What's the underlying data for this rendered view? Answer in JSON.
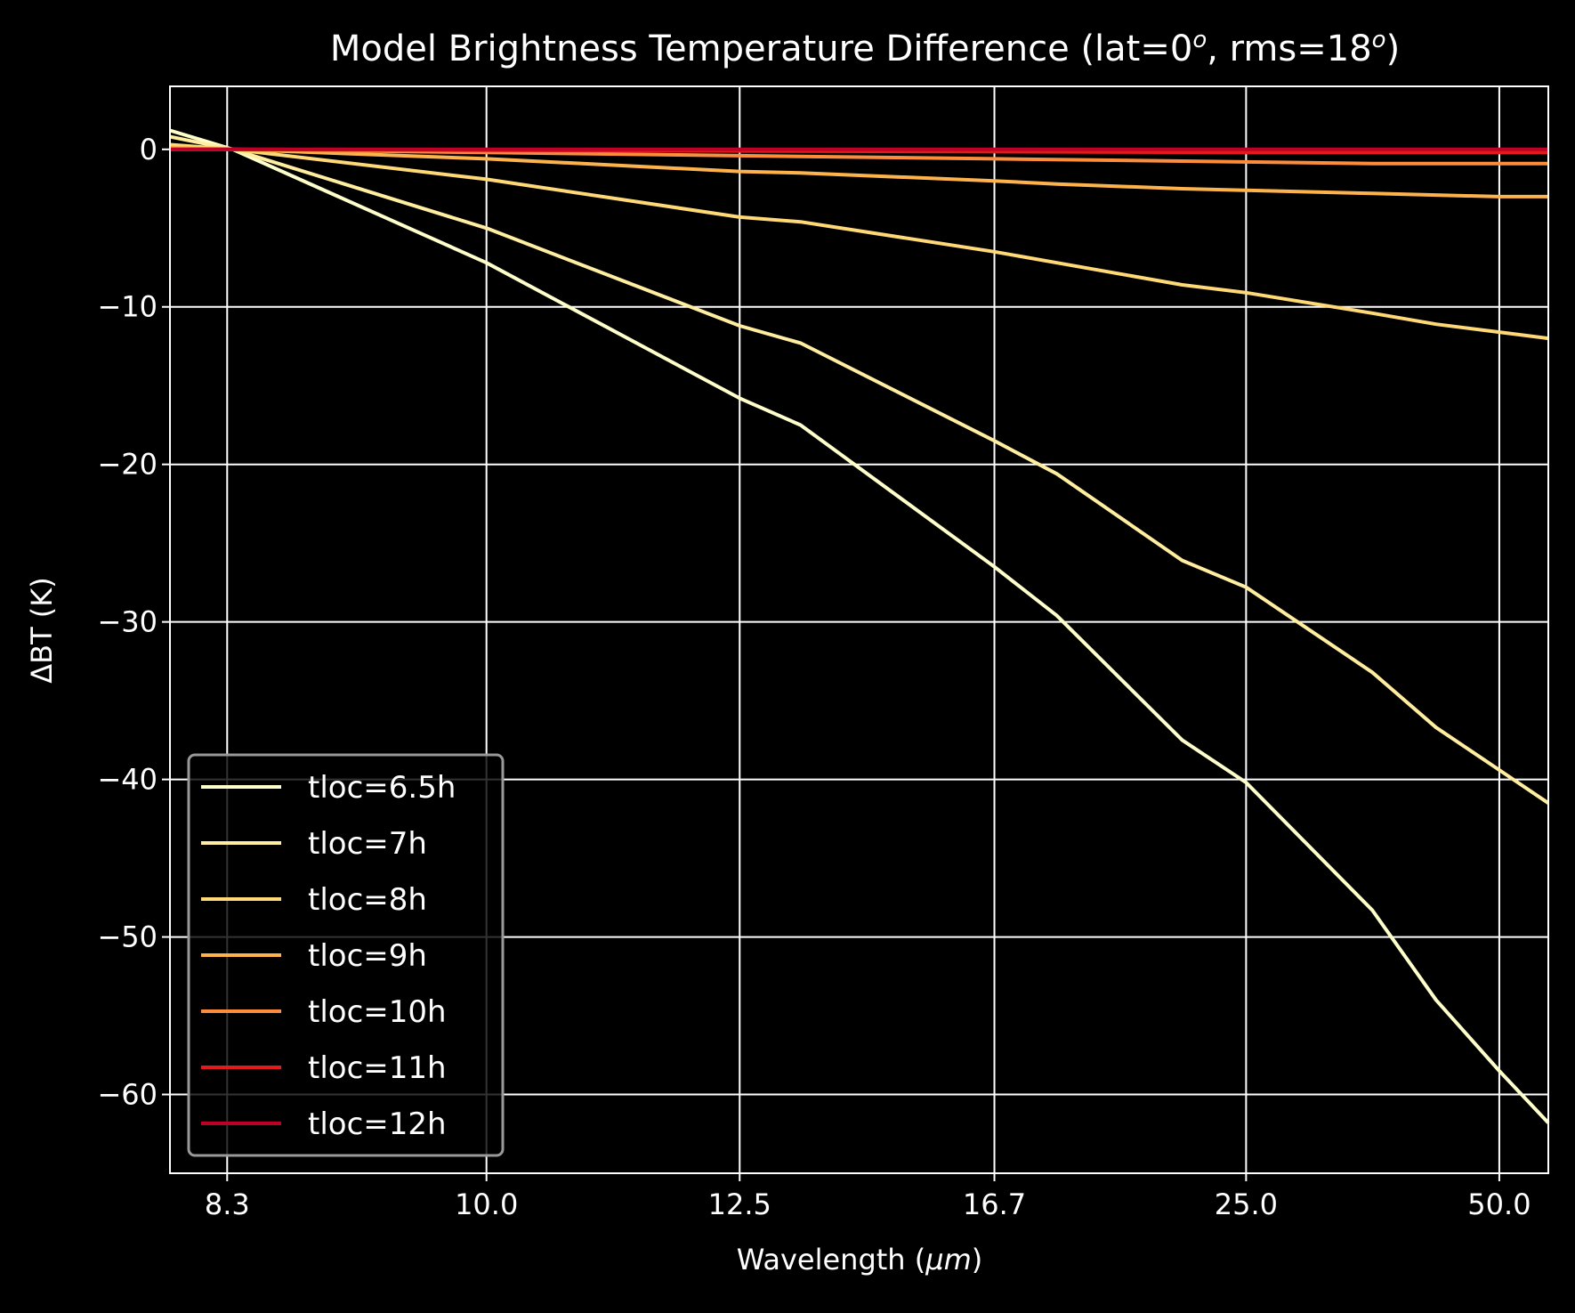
{
  "chart_data": {
    "type": "line",
    "title": "Model Brightness Temperature Difference (lat=0",
    "title_sup1": "o",
    "title_mid": ", rms=18",
    "title_sup2": "o",
    "title_end": ")",
    "xlabel": "Wavelength (",
    "xlabel_unit": "μm",
    "xlabel_end": ")",
    "ylabel": "ΔBT (K)",
    "x_scale": "reciprocal",
    "xlim": [
      8.0,
      62.0
    ],
    "ylim": [
      -65,
      4
    ],
    "x_ticks": [
      8.3,
      10.0,
      12.5,
      16.7,
      25.0,
      50.0
    ],
    "x_tick_labels": [
      "8.3",
      "10.0",
      "12.5",
      "16.7",
      "25.0",
      "50.0"
    ],
    "y_ticks": [
      0,
      -10,
      -20,
      -30,
      -40,
      -50,
      -60
    ],
    "y_tick_labels": [
      "0",
      "−10",
      "−20",
      "−30",
      "−40",
      "−50",
      "−60"
    ],
    "grid": true,
    "legend_position": "lower-left",
    "background": "#000000",
    "foreground": "#ffffff",
    "series": [
      {
        "name": "tloc=6.5h",
        "color": "#ffffcc",
        "points": [
          [
            8.0,
            1.2
          ],
          [
            8.33,
            0.0
          ],
          [
            10.0,
            -7.2
          ],
          [
            12.5,
            -15.8
          ],
          [
            13.3,
            -17.5
          ],
          [
            16.7,
            -26.5
          ],
          [
            18.2,
            -29.6
          ],
          [
            22.2,
            -37.5
          ],
          [
            25.0,
            -40.2
          ],
          [
            33.3,
            -48.3
          ],
          [
            40.0,
            -54.0
          ],
          [
            50.0,
            -58.5
          ],
          [
            62.0,
            -61.8
          ]
        ]
      },
      {
        "name": "tloc=7h",
        "color": "#ffeda0",
        "points": [
          [
            8.0,
            0.8
          ],
          [
            8.33,
            0.0
          ],
          [
            10.0,
            -5.0
          ],
          [
            12.5,
            -11.2
          ],
          [
            13.3,
            -12.3
          ],
          [
            16.7,
            -18.5
          ],
          [
            18.2,
            -20.6
          ],
          [
            22.2,
            -26.1
          ],
          [
            25.0,
            -27.8
          ],
          [
            33.3,
            -33.2
          ],
          [
            40.0,
            -36.7
          ],
          [
            50.0,
            -39.4
          ],
          [
            62.0,
            -41.5
          ]
        ]
      },
      {
        "name": "tloc=8h",
        "color": "#fed976",
        "points": [
          [
            8.0,
            0.3
          ],
          [
            8.33,
            0.0
          ],
          [
            10.0,
            -1.9
          ],
          [
            12.5,
            -4.3
          ],
          [
            13.3,
            -4.6
          ],
          [
            16.7,
            -6.5
          ],
          [
            18.2,
            -7.2
          ],
          [
            22.2,
            -8.6
          ],
          [
            25.0,
            -9.1
          ],
          [
            33.3,
            -10.4
          ],
          [
            40.0,
            -11.1
          ],
          [
            50.0,
            -11.6
          ],
          [
            62.0,
            -12.0
          ]
        ]
      },
      {
        "name": "tloc=9h",
        "color": "#feb24c",
        "points": [
          [
            8.0,
            0.1
          ],
          [
            8.33,
            0.0
          ],
          [
            10.0,
            -0.6
          ],
          [
            12.5,
            -1.4
          ],
          [
            13.3,
            -1.5
          ],
          [
            16.7,
            -2.0
          ],
          [
            18.2,
            -2.2
          ],
          [
            22.2,
            -2.5
          ],
          [
            25.0,
            -2.6
          ],
          [
            33.3,
            -2.8
          ],
          [
            40.0,
            -2.9
          ],
          [
            50.0,
            -3.0
          ],
          [
            62.0,
            -3.0
          ]
        ]
      },
      {
        "name": "tloc=10h",
        "color": "#fd8d3c",
        "points": [
          [
            8.0,
            0.0
          ],
          [
            8.33,
            0.0
          ],
          [
            10.0,
            -0.2
          ],
          [
            12.5,
            -0.4
          ],
          [
            16.7,
            -0.6
          ],
          [
            25.0,
            -0.8
          ],
          [
            33.3,
            -0.9
          ],
          [
            50.0,
            -0.9
          ],
          [
            62.0,
            -0.9
          ]
        ]
      },
      {
        "name": "tloc=11h",
        "color": "#e31a1c",
        "points": [
          [
            8.0,
            0.0
          ],
          [
            8.33,
            0.0
          ],
          [
            10.0,
            -0.05
          ],
          [
            12.5,
            -0.1
          ],
          [
            16.7,
            -0.15
          ],
          [
            25.0,
            -0.2
          ],
          [
            50.0,
            -0.2
          ],
          [
            62.0,
            -0.2
          ]
        ]
      },
      {
        "name": "tloc=12h",
        "color": "#bd0026",
        "points": [
          [
            8.0,
            0.0
          ],
          [
            62.0,
            0.0
          ]
        ]
      }
    ]
  }
}
